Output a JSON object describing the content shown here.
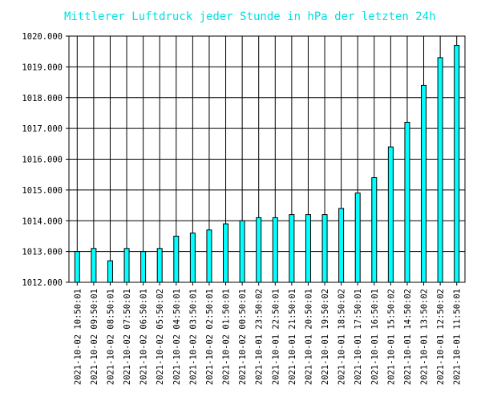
{
  "chart_data": {
    "type": "bar",
    "title": "Mittlerer Luftdruck jeder Stunde in hPa der letzten 24h",
    "xlabel": "",
    "ylabel": "",
    "ylim": [
      1012,
      1020
    ],
    "yticks": [
      "1012.000",
      "1013.000",
      "1014.000",
      "1015.000",
      "1016.000",
      "1017.000",
      "1018.000",
      "1019.000",
      "1020.000"
    ],
    "grid": true,
    "legend": "none",
    "bar_color": "#00ffff",
    "categories": [
      "2021-10-02 10:50:01",
      "2021-10-02 09:50:01",
      "2021-10-02 08:50:01",
      "2021-10-02 07:50:01",
      "2021-10-02 06:50:01",
      "2021-10-02 05:50:02",
      "2021-10-02 04:50:01",
      "2021-10-02 03:50:01",
      "2021-10-02 02:50:01",
      "2021-10-02 01:50:01",
      "2021-10-02 00:50:01",
      "2021-10-01 23:50:02",
      "2021-10-01 22:50:01",
      "2021-10-01 21:50:01",
      "2021-10-01 20:50:01",
      "2021-10-01 19:50:02",
      "2021-10-01 18:50:02",
      "2021-10-01 17:50:01",
      "2021-10-01 16:50:01",
      "2021-10-01 15:50:02",
      "2021-10-01 14:50:02",
      "2021-10-01 13:50:02",
      "2021-10-01 12:50:02",
      "2021-10-01 11:50:01"
    ],
    "values": [
      1013.0,
      1013.1,
      1012.7,
      1013.1,
      1013.0,
      1013.1,
      1013.5,
      1013.6,
      1013.7,
      1013.9,
      1014.0,
      1014.1,
      1014.1,
      1014.2,
      1014.2,
      1014.2,
      1014.4,
      1014.9,
      1015.4,
      1016.4,
      1017.2,
      1018.4,
      1019.3,
      1019.7
    ]
  }
}
